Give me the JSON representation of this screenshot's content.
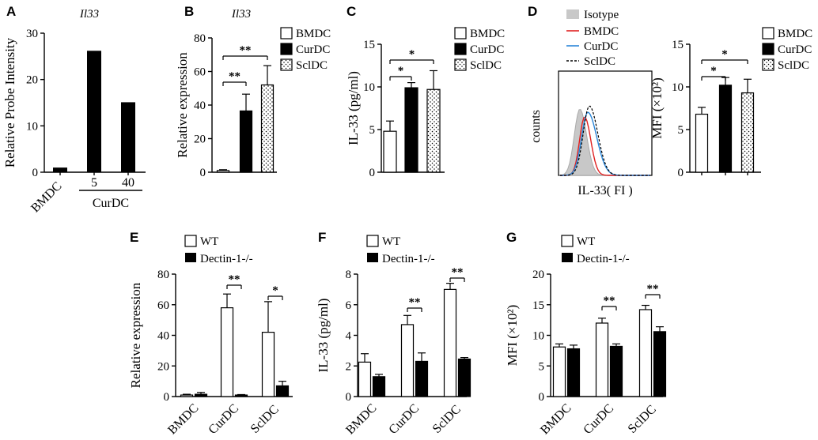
{
  "chart_data": [
    {
      "panel": "A",
      "type": "bar",
      "title": "Il33",
      "ylabel": "Relative Probe Intensity",
      "ylim": [
        0,
        30
      ],
      "yticks": [
        0,
        10,
        20,
        30
      ],
      "categories": [
        "BMDC",
        "5",
        "40"
      ],
      "group_label": "CurDC",
      "values": [
        1,
        26.2,
        15.1
      ]
    },
    {
      "panel": "B",
      "type": "bar",
      "title": "Il33",
      "ylabel": "Relative expression",
      "ylim": [
        0,
        80
      ],
      "yticks": [
        0,
        20,
        40,
        60,
        80
      ],
      "legend": [
        "BMDC",
        "CurDC",
        "SclDC"
      ],
      "values": [
        1,
        36.5,
        52
      ],
      "errors": [
        0.5,
        10,
        11.5
      ],
      "significance": [
        {
          "text": "**",
          "from": 0,
          "to": 1
        },
        {
          "text": "**",
          "from": 0,
          "to": 2
        }
      ]
    },
    {
      "panel": "C",
      "type": "bar",
      "ylabel": "IL-33 (pg/ml)",
      "ylim": [
        0,
        15
      ],
      "yticks": [
        0,
        5,
        10,
        15
      ],
      "legend": [
        "BMDC",
        "CurDC",
        "SclDC"
      ],
      "values": [
        4.8,
        9.9,
        9.7
      ],
      "errors": [
        1.2,
        0.6,
        2.2
      ],
      "significance": [
        {
          "text": "*",
          "from": 0,
          "to": 1
        },
        {
          "text": "*",
          "from": 0,
          "to": 2
        }
      ]
    },
    {
      "panel": "D",
      "type": "histogram",
      "xlabel": "IL-33( FI )",
      "ylabel": "counts",
      "legend": [
        "Isotype",
        "BMDC",
        "CurDC",
        "SclDC"
      ],
      "colors": {
        "Isotype": "#c8c8c8",
        "BMDC": "#e02020",
        "CurDC": "#2a86d8",
        "SclDC": "#000000"
      }
    },
    {
      "panel": "D",
      "type": "bar",
      "ylabel": "MFI (×10²)",
      "ylim": [
        0,
        15
      ],
      "yticks": [
        0,
        5,
        10,
        15
      ],
      "legend": [
        "BMDC",
        "CurDC",
        "SclDC"
      ],
      "values": [
        6.8,
        10.2,
        9.3
      ],
      "errors": [
        0.8,
        0.9,
        1.6
      ],
      "significance": [
        {
          "text": "*",
          "from": 0,
          "to": 1
        },
        {
          "text": "*",
          "from": 0,
          "to": 2
        }
      ]
    },
    {
      "panel": "E",
      "type": "bar",
      "ylabel": "Relative expression",
      "ylim": [
        0,
        80
      ],
      "yticks": [
        0,
        20,
        40,
        60,
        80
      ],
      "categories": [
        "BMDC",
        "CurDC",
        "SclDC"
      ],
      "series": [
        {
          "name": "WT",
          "values": [
            1,
            58,
            42
          ],
          "errors": [
            0.5,
            9,
            20
          ]
        },
        {
          "name": "Dectin-1-/-",
          "values": [
            1.5,
            1,
            7
          ],
          "errors": [
            1.2,
            0.3,
            3
          ]
        }
      ],
      "significance": [
        {
          "text": "**",
          "category": 1
        },
        {
          "text": "*",
          "category": 2
        }
      ]
    },
    {
      "panel": "F",
      "type": "bar",
      "ylabel": "IL-33 (pg/ml)",
      "ylim": [
        0,
        8
      ],
      "yticks": [
        0,
        2,
        4,
        6,
        8
      ],
      "categories": [
        "BMDC",
        "CurDC",
        "SclDC"
      ],
      "series": [
        {
          "name": "WT",
          "values": [
            2.25,
            4.7,
            7.0
          ],
          "errors": [
            0.55,
            0.6,
            0.4
          ]
        },
        {
          "name": "Dectin-1-/-",
          "values": [
            1.3,
            2.3,
            2.45
          ],
          "errors": [
            0.15,
            0.55,
            0.1
          ]
        }
      ],
      "significance": [
        {
          "text": "**",
          "category": 1
        },
        {
          "text": "**",
          "category": 2
        }
      ]
    },
    {
      "panel": "G",
      "type": "bar",
      "ylabel": "MFI (×10²)",
      "ylim": [
        0,
        20
      ],
      "yticks": [
        0,
        5,
        10,
        15,
        20
      ],
      "categories": [
        "BMDC",
        "CurDC",
        "SclDC"
      ],
      "series": [
        {
          "name": "WT",
          "values": [
            8.1,
            12.0,
            14.2
          ],
          "errors": [
            0.5,
            0.8,
            0.7
          ]
        },
        {
          "name": "Dectin-1-/-",
          "values": [
            7.8,
            8.2,
            10.6
          ],
          "errors": [
            0.6,
            0.4,
            0.8
          ]
        }
      ],
      "significance": [
        {
          "text": "**",
          "category": 1
        },
        {
          "text": "**",
          "category": 2
        }
      ]
    }
  ]
}
